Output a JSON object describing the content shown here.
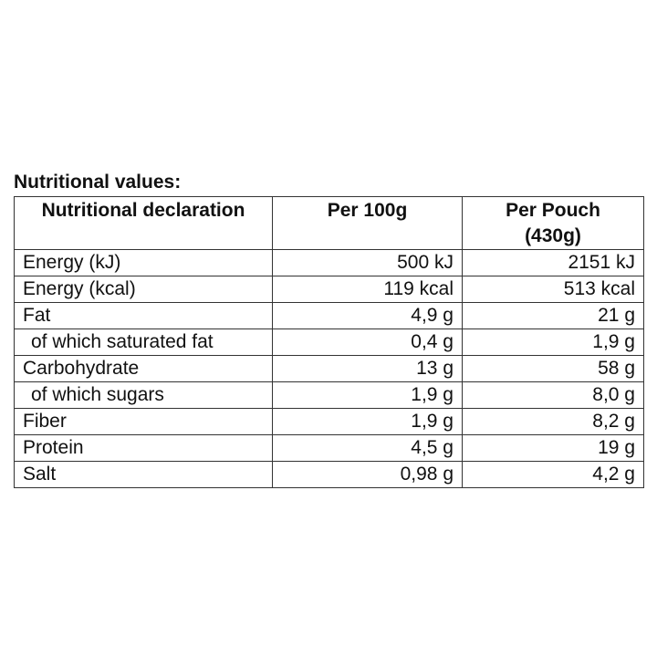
{
  "caption": "Nutritional values:",
  "headers": {
    "col1": "Nutritional declaration",
    "col2": "Per 100g",
    "col3_line1": "Per Pouch",
    "col3_line2": "(430g)"
  },
  "rows": [
    {
      "label": "Energy (kJ)",
      "per100g": "500 kJ",
      "perPouch": "2151 kJ"
    },
    {
      "label": "Energy (kcal)",
      "per100g": "119 kcal",
      "perPouch": "513 kcal"
    },
    {
      "label": "Fat",
      "per100g": "4,9 g",
      "perPouch": "21 g"
    },
    {
      "label": "of which saturated fat",
      "per100g": "0,4 g",
      "perPouch": "1,9 g"
    },
    {
      "label": "Carbohydrate",
      "per100g": "13 g",
      "perPouch": "58 g"
    },
    {
      "label": "of which sugars",
      "per100g": "1,9 g",
      "perPouch": "8,0 g"
    },
    {
      "label": "Fiber",
      "per100g": "1,9 g",
      "perPouch": "8,2 g"
    },
    {
      "label": "Protein",
      "per100g": "4,5 g",
      "perPouch": "19 g"
    },
    {
      "label": "Salt",
      "per100g": "0,98 g",
      "perPouch": "4,2 g"
    }
  ]
}
